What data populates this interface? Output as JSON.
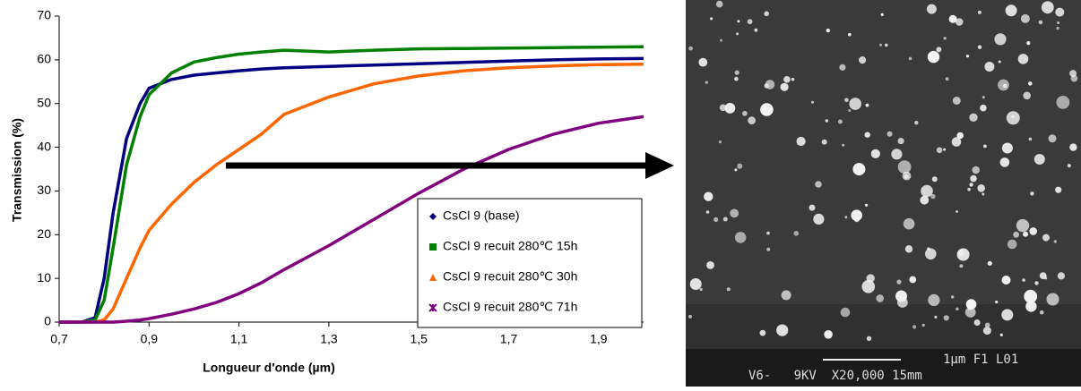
{
  "chart_data": {
    "type": "line",
    "x_label": "Longueur d'onde (µm)",
    "y_label": "Transmission (%)",
    "x": [
      0.7,
      0.75,
      0.78,
      0.8,
      0.82,
      0.85,
      0.88,
      0.9,
      0.95,
      1.0,
      1.05,
      1.1,
      1.15,
      1.2,
      1.3,
      1.4,
      1.5,
      1.6,
      1.7,
      1.8,
      1.9,
      2.0
    ],
    "series": [
      {
        "name": "CsCl 9 (base)",
        "color": "#000080",
        "values": [
          0,
          0,
          1,
          10,
          25,
          42,
          50,
          53.5,
          55.5,
          56.5,
          57,
          57.5,
          57.9,
          58.2,
          58.5,
          58.8,
          59.1,
          59.4,
          59.7,
          60,
          60.2,
          60.3
        ]
      },
      {
        "name": "CsCl 9 recuit 280℃ 15h",
        "color": "#008000",
        "values": [
          0,
          0,
          0.5,
          5,
          17,
          36,
          47,
          52,
          57,
          59.5,
          60.5,
          61.3,
          61.8,
          62.2,
          61.8,
          62.2,
          62.5,
          62.6,
          62.7,
          62.8,
          62.9,
          63
        ]
      },
      {
        "name": "CsCl 9 recuit 280℃ 30h",
        "color": "#ff6600",
        "values": [
          0,
          0,
          0,
          0.5,
          3,
          10,
          17,
          21,
          27,
          32,
          36,
          39.5,
          43,
          47.5,
          51.5,
          54.5,
          56.3,
          57.5,
          58.2,
          58.6,
          58.9,
          59
        ]
      },
      {
        "name": "CsCl 9 recuit 280℃ 71h",
        "color": "#800080",
        "values": [
          0,
          0,
          0,
          0,
          0,
          0.2,
          0.5,
          0.8,
          1.8,
          3,
          4.5,
          6.5,
          9,
          12,
          17.5,
          23.5,
          29.5,
          35,
          39.5,
          43,
          45.5,
          47
        ]
      }
    ],
    "xlim": [
      0.7,
      2.0
    ],
    "xticks": [
      {
        "value": 0.7,
        "label": "0,7"
      },
      {
        "value": 0.9,
        "label": "0,9"
      },
      {
        "value": 1.1,
        "label": "1,1"
      },
      {
        "value": 1.3,
        "label": "1,3"
      },
      {
        "value": 1.5,
        "label": "1,5"
      },
      {
        "value": 1.7,
        "label": "1,7"
      },
      {
        "value": 1.9,
        "label": "1,9"
      }
    ],
    "ylim": [
      0,
      70
    ],
    "yticks": [
      0,
      10,
      20,
      30,
      40,
      50,
      60,
      70
    ],
    "legend": "lower right"
  },
  "image": {
    "scale": "1μm F1 L01",
    "settings": "V6-   9KV  X20,000 15mm"
  }
}
